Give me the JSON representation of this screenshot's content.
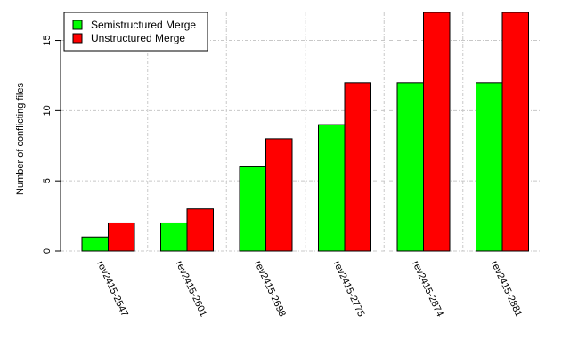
{
  "chart_data": {
    "type": "bar",
    "title": "",
    "xlabel": "",
    "ylabel": "Number of conflicting files",
    "categories": [
      "rev2415-2547",
      "rev2415-2601",
      "rev2415-2698",
      "rev2415-2775",
      "rev2415-2874",
      "rev2415-2881"
    ],
    "series": [
      {
        "name": "Semistructured Merge",
        "values": [
          1,
          2,
          6,
          9,
          12,
          12
        ],
        "color": "#00ff00"
      },
      {
        "name": "Unstructured Merge",
        "values": [
          2,
          3,
          8,
          12,
          17,
          17
        ],
        "color": "#ff0000"
      }
    ],
    "ylim": [
      0,
      17
    ],
    "yticks": [
      0,
      5,
      10,
      15
    ],
    "grid": true,
    "legend_position": "top-left"
  }
}
